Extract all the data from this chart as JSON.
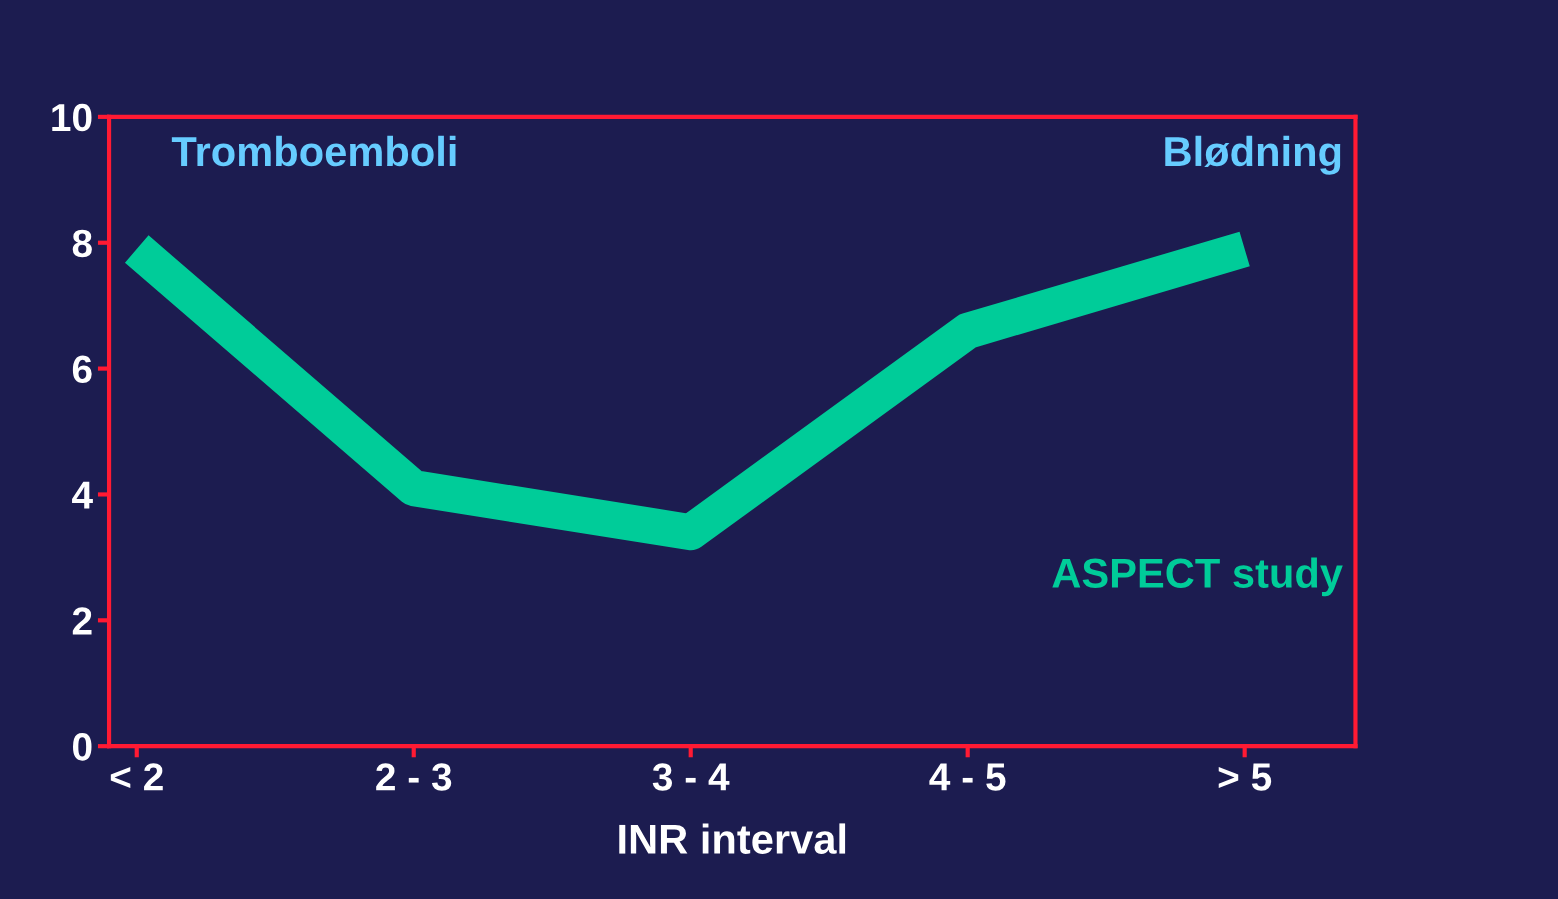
{
  "chart_data": {
    "type": "line",
    "categories": [
      "< 2",
      "2 - 3",
      "3 - 4",
      "4 - 5",
      "> 5"
    ],
    "series": [
      {
        "color": "#00cc99",
        "values": [
          7.9,
          4.1,
          3.4,
          6.6,
          7.9
        ]
      }
    ],
    "xlabel": "INR interval",
    "ylim": [
      0,
      10
    ],
    "yticks": [
      0,
      2,
      4,
      6,
      8,
      10
    ],
    "grid": false,
    "marker": "none",
    "line_style": "solid",
    "annotations": [
      "Tromboemboli",
      "Blødning",
      "ASPECT study"
    ]
  }
}
